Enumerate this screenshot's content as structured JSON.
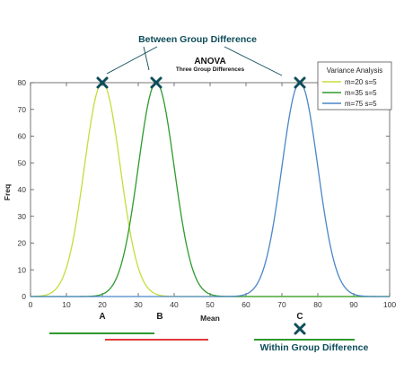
{
  "chart_data": {
    "type": "line",
    "title": "ANOVA",
    "subtitle": "Three Group Differences",
    "xlabel": "Mean",
    "ylabel": "Freq",
    "xlim": [
      0,
      100
    ],
    "ylim": [
      0,
      80
    ],
    "xticks": [
      0,
      10,
      20,
      30,
      40,
      50,
      60,
      70,
      80,
      90,
      100
    ],
    "yticks": [
      0,
      10,
      20,
      30,
      40,
      50,
      60,
      70,
      80
    ],
    "legend": {
      "title": "Variance Analysis",
      "placement": "top-right"
    },
    "series": [
      {
        "name": "m=20 s=5",
        "mean": 20,
        "sd": 5,
        "peak": 80,
        "color": "#c8dc3c"
      },
      {
        "name": "m=35 s=5",
        "mean": 35,
        "sd": 5,
        "peak": 80,
        "color": "#2e9a2e"
      },
      {
        "name": "m=75 s=5",
        "mean": 75,
        "sd": 5,
        "peak": 80,
        "color": "#4a86c8"
      }
    ],
    "group_labels": [
      {
        "text": "A",
        "x": 20
      },
      {
        "text": "B",
        "x": 36
      },
      {
        "text": "C",
        "x": 75
      }
    ],
    "annotations": {
      "between": "Between Group Difference",
      "within": "Within Group Difference"
    },
    "colors": {
      "marker": "#0e4d5a",
      "bar_green": "#2e9a2e",
      "bar_red": "#e03a3a"
    }
  }
}
